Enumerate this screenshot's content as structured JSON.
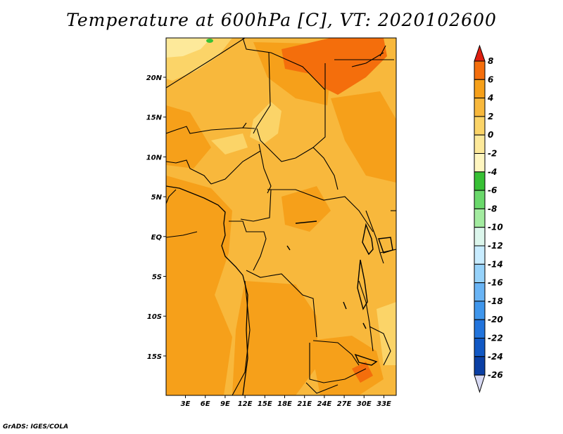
{
  "title": "Temperature at 600hPa [C], VT: 2020102600",
  "footer": "GrADS: IGES/COLA",
  "map": {
    "lon_labels": [
      "3E",
      "6E",
      "9E",
      "12E",
      "15E",
      "18E",
      "21E",
      "24E",
      "27E",
      "30E",
      "33E"
    ],
    "lat_labels": [
      "20N",
      "15N",
      "10N",
      "5N",
      "EQ",
      "5S",
      "10S",
      "15S"
    ]
  },
  "colorbar": {
    "labels": [
      "8",
      "6",
      "4",
      "2",
      "0",
      "-2",
      "-4",
      "-6",
      "-8",
      "-10",
      "-12",
      "-14",
      "-16",
      "-18",
      "-20",
      "-22",
      "-24",
      "-26"
    ],
    "colors": [
      "#f02810",
      "#f46e0c",
      "#f6a01a",
      "#f8b83c",
      "#fbd468",
      "#fde99a",
      "#fff6c0",
      "#37c035",
      "#6ad86b",
      "#a3eba0",
      "#dcf6ec",
      "#c8ecff",
      "#96d2fa",
      "#69b4f5",
      "#3f96ec",
      "#2274dc",
      "#1158c4",
      "#0a3fa4",
      "#0c1a70"
    ],
    "over_color": "#de1f10",
    "under_color": "#d8daf4"
  }
}
